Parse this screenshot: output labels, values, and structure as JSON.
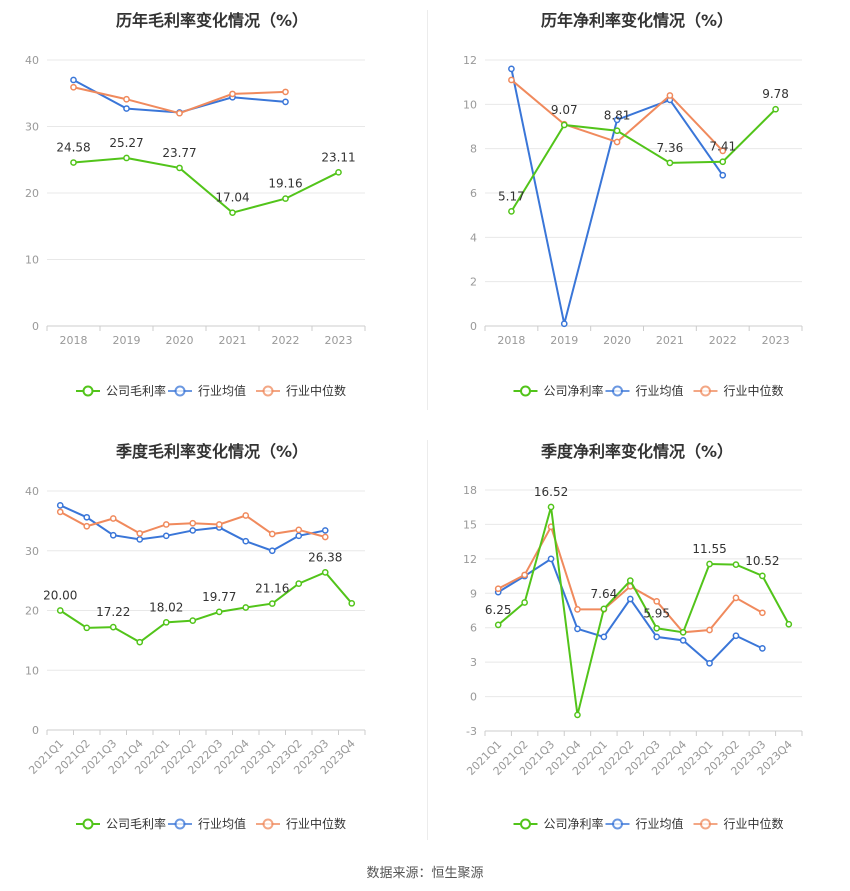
{
  "colors": {
    "company": "#52c41a",
    "industry_avg": "#3a76d8",
    "industry_median": "#f08a5d",
    "grid": "#e8e8e8",
    "axis_text": "#999999",
    "title": "#333333",
    "label": "#333333"
  },
  "legend": {
    "gross": [
      "公司毛利率",
      "行业均值",
      "行业中位数"
    ],
    "net": [
      "公司净利率",
      "行业均值",
      "行业中位数"
    ]
  },
  "source": "数据来源：恒生聚源",
  "chart_data": [
    {
      "id": "annual-gross",
      "type": "line",
      "title": "历年毛利率变化情况（%）",
      "categories": [
        "2018",
        "2019",
        "2020",
        "2021",
        "2022",
        "2023"
      ],
      "ylim": [
        0,
        40
      ],
      "yticks": [
        0,
        10,
        20,
        30,
        40
      ],
      "series": [
        {
          "name": "公司毛利率",
          "key": "company",
          "values": [
            24.58,
            25.27,
            23.77,
            17.04,
            19.16,
            23.11
          ],
          "labels": [
            true,
            true,
            true,
            true,
            true,
            true
          ]
        },
        {
          "name": "行业均值",
          "key": "industry_avg",
          "values": [
            37.0,
            32.7,
            32.1,
            34.4,
            33.7,
            null
          ]
        },
        {
          "name": "行业中位数",
          "key": "industry_median",
          "values": [
            35.9,
            34.1,
            32.0,
            34.9,
            35.2,
            null
          ]
        }
      ],
      "legend_position": "bottom",
      "grid": true
    },
    {
      "id": "annual-net",
      "type": "line",
      "title": "历年净利率变化情况（%）",
      "categories": [
        "2018",
        "2019",
        "2020",
        "2021",
        "2022",
        "2023"
      ],
      "ylim": [
        0,
        12
      ],
      "yticks": [
        0,
        2,
        4,
        6,
        8,
        10,
        12
      ],
      "series": [
        {
          "name": "公司净利率",
          "key": "company",
          "values": [
            5.17,
            9.07,
            8.81,
            7.36,
            7.41,
            9.78
          ],
          "labels": [
            true,
            true,
            true,
            true,
            true,
            true
          ]
        },
        {
          "name": "行业均值",
          "key": "industry_avg",
          "values": [
            11.6,
            0.1,
            9.3,
            10.2,
            6.8,
            null
          ]
        },
        {
          "name": "行业中位数",
          "key": "industry_median",
          "values": [
            11.1,
            9.1,
            8.3,
            10.4,
            7.9,
            null
          ]
        }
      ],
      "legend_position": "bottom",
      "grid": true
    },
    {
      "id": "quarterly-gross",
      "type": "line",
      "title": "季度毛利率变化情况（%）",
      "categories": [
        "2021Q1",
        "2021Q2",
        "2021Q3",
        "2021Q4",
        "2022Q1",
        "2022Q2",
        "2022Q3",
        "2022Q4",
        "2023Q1",
        "2023Q2",
        "2023Q3",
        "2023Q4"
      ],
      "ylim": [
        0,
        40
      ],
      "yticks": [
        0,
        10,
        20,
        30,
        40
      ],
      "series": [
        {
          "name": "公司毛利率",
          "key": "company",
          "values": [
            20.0,
            17.1,
            17.22,
            14.7,
            18.02,
            18.3,
            19.77,
            20.5,
            21.16,
            24.5,
            26.38,
            21.2
          ],
          "labels": [
            true,
            false,
            true,
            false,
            true,
            false,
            true,
            false,
            true,
            false,
            true,
            false
          ],
          "label_text": [
            "20.00",
            "",
            "17.22",
            "",
            "18.02",
            "",
            "19.77",
            "",
            "21.16",
            "",
            "26.38",
            ""
          ]
        },
        {
          "name": "行业均值",
          "key": "industry_avg",
          "values": [
            37.6,
            35.6,
            32.6,
            31.9,
            32.5,
            33.4,
            33.9,
            31.6,
            30.0,
            32.5,
            33.4,
            null
          ]
        },
        {
          "name": "行业中位数",
          "key": "industry_median",
          "values": [
            36.5,
            34.1,
            35.4,
            32.9,
            34.4,
            34.6,
            34.4,
            35.9,
            32.8,
            33.5,
            32.3,
            null
          ]
        }
      ],
      "legend_position": "bottom",
      "grid": true
    },
    {
      "id": "quarterly-net",
      "type": "line",
      "title": "季度净利率变化情况（%）",
      "categories": [
        "2021Q1",
        "2021Q2",
        "2021Q3",
        "2021Q4",
        "2022Q1",
        "2022Q2",
        "2022Q3",
        "2022Q4",
        "2023Q1",
        "2023Q2",
        "2023Q3",
        "2023Q4"
      ],
      "ylim": [
        -3,
        18
      ],
      "yticks": [
        -3,
        0,
        3,
        6,
        9,
        12,
        15,
        18
      ],
      "series": [
        {
          "name": "公司净利率",
          "key": "company",
          "values": [
            6.25,
            8.2,
            16.52,
            -1.6,
            7.64,
            10.1,
            5.95,
            5.6,
            11.55,
            11.5,
            10.52,
            6.3
          ],
          "labels": [
            true,
            false,
            true,
            false,
            true,
            false,
            true,
            false,
            true,
            false,
            true,
            false
          ],
          "label_text": [
            "6.25",
            "",
            "16.52",
            "",
            "7.64",
            "",
            "5.95",
            "",
            "11.55",
            "",
            "10.52",
            ""
          ]
        },
        {
          "name": "行业均值",
          "key": "industry_avg",
          "values": [
            9.1,
            10.5,
            12.0,
            5.9,
            5.2,
            8.5,
            5.2,
            4.9,
            2.9,
            5.3,
            4.2,
            null
          ]
        },
        {
          "name": "行业中位数",
          "key": "industry_median",
          "values": [
            9.4,
            10.6,
            14.8,
            7.6,
            7.6,
            9.6,
            8.3,
            5.6,
            5.8,
            8.6,
            7.3,
            null
          ]
        }
      ],
      "legend_position": "bottom",
      "grid": true
    }
  ]
}
